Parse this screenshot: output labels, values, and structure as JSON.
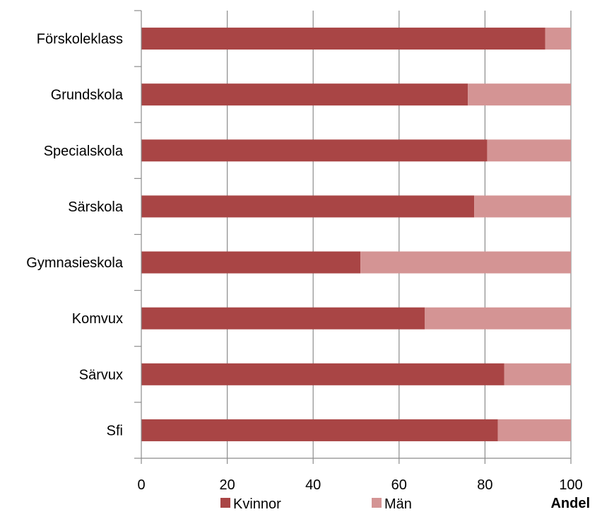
{
  "chart_data": {
    "type": "bar",
    "orientation": "horizontal",
    "stacked": true,
    "categories": [
      "Förskoleklass",
      "Grundskola",
      "Specialskola",
      "Särskola",
      "Gymnasieskola",
      "Komvux",
      "Särvux",
      "Sfi"
    ],
    "series": [
      {
        "name": "Kvinnor",
        "color": "#A94545",
        "values": [
          94,
          76,
          80.5,
          77.5,
          51,
          66,
          84.5,
          83
        ]
      },
      {
        "name": "Män",
        "color": "#D49494",
        "values": [
          6,
          24,
          19.5,
          22.5,
          49,
          34,
          15.5,
          17
        ]
      }
    ],
    "xlabel": "Andel",
    "xlim": [
      0,
      100
    ],
    "xticks": [
      0,
      20,
      40,
      60,
      80,
      100
    ],
    "grid": "vertical",
    "legend": "bottom"
  }
}
